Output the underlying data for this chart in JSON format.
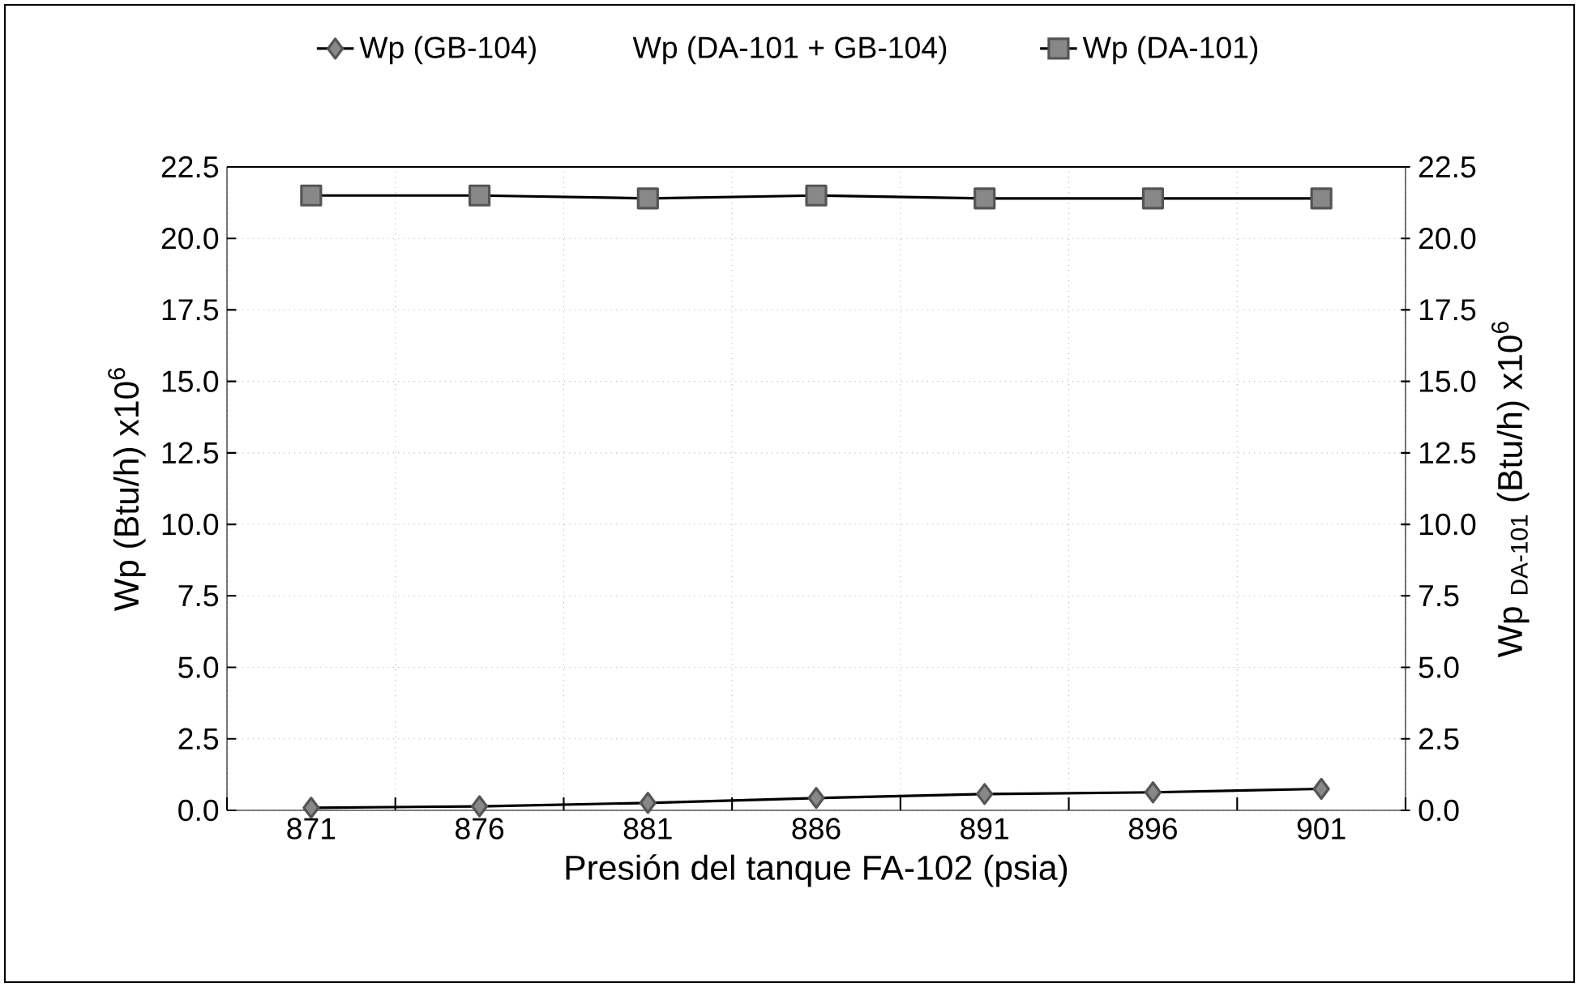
{
  "chart_data": {
    "type": "line",
    "xlabel": "Presión del tanque FA-102 (psia)",
    "ylabel": "Wp (Btu/h)  x10$^{6}$",
    "y2label": "Wp $_{DA-101}$ (Btu/h)  x10$^{6}$",
    "categories": [
      "871",
      "876",
      "881",
      "886",
      "891",
      "896",
      "901"
    ],
    "series": [
      {
        "name": "Wp (GB-104)",
        "color": "#555555",
        "marker": "diamond",
        "values": [
          0.09,
          0.14,
          0.26,
          0.43,
          0.57,
          0.63,
          0.75
        ]
      },
      {
        "name": "Wp (DA-101)",
        "color": "#555555",
        "marker": "square",
        "axis": "y2",
        "values": [
          21.5,
          21.5,
          21.4,
          21.5,
          21.4,
          21.4,
          21.4
        ]
      }
    ],
    "annotations": [
      "Wp (DA-101 + GB-104)"
    ],
    "ylim": [
      0,
      22.5
    ],
    "yticks": [
      {
        "value": 0,
        "label": "0.0"
      },
      {
        "value": 2.5,
        "label": "2.5"
      },
      {
        "value": 5,
        "label": "5.0"
      },
      {
        "value": 7.5,
        "label": "7.5"
      },
      {
        "value": 10,
        "label": "10.0"
      },
      {
        "value": 12.5,
        "label": "12.5"
      },
      {
        "value": 15,
        "label": "15.0"
      },
      {
        "value": 17.5,
        "label": "17.5"
      },
      {
        "value": 20,
        "label": "20.0"
      },
      {
        "value": 22.5,
        "label": "22.5"
      }
    ],
    "y2lim": [
      0,
      22.5
    ],
    "y2ticks": [
      {
        "value": 0,
        "label": "0.0"
      },
      {
        "value": 2.5,
        "label": "2.5"
      },
      {
        "value": 5,
        "label": "5.0"
      },
      {
        "value": 7.5,
        "label": "7.5"
      },
      {
        "value": 10,
        "label": "10.0"
      },
      {
        "value": 12.5,
        "label": "12.5"
      },
      {
        "value": 15,
        "label": "15.0"
      },
      {
        "value": 17.5,
        "label": "17.5"
      },
      {
        "value": 20,
        "label": "20.0"
      },
      {
        "value": 22.5,
        "label": "22.5"
      }
    ],
    "grid": true,
    "legend": "top",
    "line_style": "solid"
  }
}
